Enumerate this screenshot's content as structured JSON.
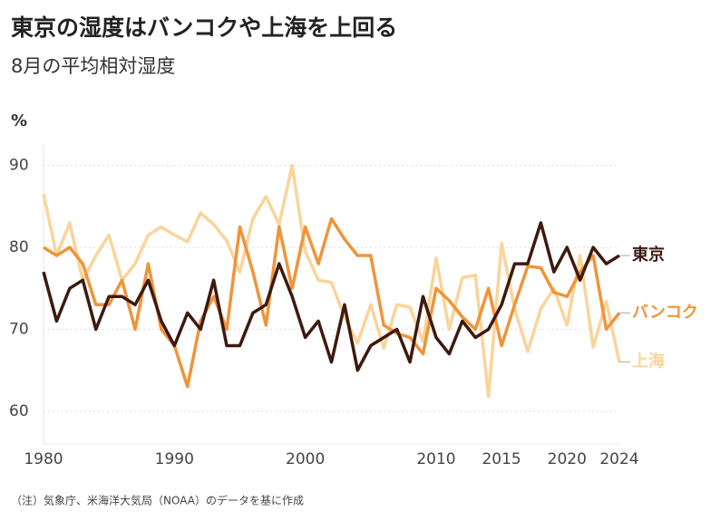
{
  "chart_data": {
    "type": "line",
    "title": "東京の湿度はバンコクや上海を上回る",
    "subtitle": "8月の平均相対湿度",
    "y_label": "%",
    "source": "（注）気象庁、米海洋大気局（NOAA）のデータを基に作成",
    "x": [
      1980,
      1981,
      1982,
      1983,
      1984,
      1985,
      1986,
      1987,
      1988,
      1989,
      1990,
      1991,
      1992,
      1993,
      1994,
      1995,
      1996,
      1997,
      1998,
      1999,
      2000,
      2001,
      2002,
      2003,
      2004,
      2005,
      2006,
      2007,
      2008,
      2009,
      2010,
      2011,
      2012,
      2013,
      2014,
      2015,
      2016,
      2017,
      2018,
      2019,
      2020,
      2021,
      2022,
      2023,
      2024
    ],
    "series": [
      {
        "name": "上海",
        "color": "#fad49a",
        "values": [
          86.5,
          79,
          83,
          76,
          79,
          81.5,
          76,
          78,
          81.5,
          82.5,
          81.5,
          80.7,
          84.2,
          82.8,
          80.8,
          77,
          83.5,
          86.2,
          82.8,
          90,
          79.5,
          76,
          75.7,
          71.5,
          68.3,
          73,
          67.7,
          73,
          72.7,
          68.5,
          78.7,
          70,
          76.3,
          76.6,
          61.8,
          80.5,
          72.5,
          67.3,
          72.5,
          75,
          70.5,
          79,
          67.8,
          73.4,
          66
        ]
      },
      {
        "name": "バンコク",
        "color": "#f0943a",
        "values": [
          80,
          79,
          80,
          78,
          73,
          73,
          76,
          70,
          78,
          70,
          68,
          63,
          71,
          74,
          70,
          82.5,
          77,
          70.5,
          82.5,
          75,
          82.5,
          78,
          83.5,
          81,
          79,
          79,
          70.5,
          69.5,
          69,
          67,
          75,
          73.5,
          71.5,
          70,
          75,
          68,
          73,
          77.7,
          77.5,
          74.5,
          74,
          77,
          79,
          70,
          72
        ]
      },
      {
        "name": "東京",
        "color": "#3d1a0e",
        "values": [
          77,
          71,
          75,
          76,
          70,
          74,
          74,
          73,
          76,
          71,
          68,
          72,
          70,
          76,
          68,
          68,
          72,
          73,
          78,
          74,
          69,
          71,
          66,
          73,
          65,
          68,
          69,
          70,
          66,
          74,
          69,
          67,
          71,
          69,
          70,
          73,
          78,
          78,
          83,
          77,
          80,
          76,
          80,
          78,
          79
        ]
      }
    ],
    "xlim": [
      1980,
      2024
    ],
    "xticks": [
      1980,
      1990,
      2000,
      2010,
      2015,
      2020,
      2024
    ],
    "ylim": [
      56,
      92.5
    ],
    "yticks": [
      60,
      70,
      80,
      90
    ],
    "grid": true,
    "legend": "end-labels"
  }
}
